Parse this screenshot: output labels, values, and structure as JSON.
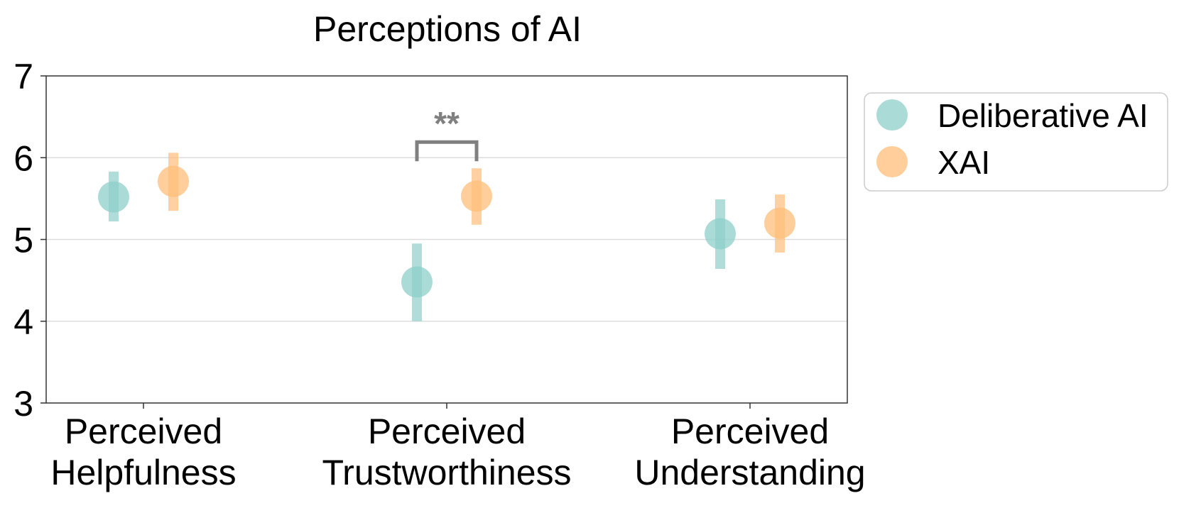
{
  "chart_data": {
    "type": "scatter",
    "title": "Perceptions of AI",
    "xlabel": "",
    "ylabel": "",
    "categories": [
      "Perceived\nHelpfulness",
      "Perceived\nTrustworthiness",
      "Perceived\nUnderstanding"
    ],
    "ylim": [
      3,
      7
    ],
    "yticks": [
      "3",
      "4",
      "5",
      "6",
      "7"
    ],
    "grid": true,
    "legend_position": "outside-right",
    "series": [
      {
        "name": "Deliberative AI",
        "color": "#8ecfc9",
        "values": [
          5.52,
          4.48,
          5.07
        ],
        "lower": [
          5.22,
          4.0,
          4.64
        ],
        "upper": [
          5.83,
          4.95,
          5.49
        ]
      },
      {
        "name": "XAI",
        "color": "#ffbe7a",
        "values": [
          5.71,
          5.53,
          5.2
        ],
        "lower": [
          5.35,
          5.18,
          4.84
        ],
        "upper": [
          6.06,
          5.87,
          5.55
        ]
      }
    ],
    "annotations": [
      {
        "category_index": 1,
        "text": "**",
        "y": 6.2
      }
    ]
  }
}
